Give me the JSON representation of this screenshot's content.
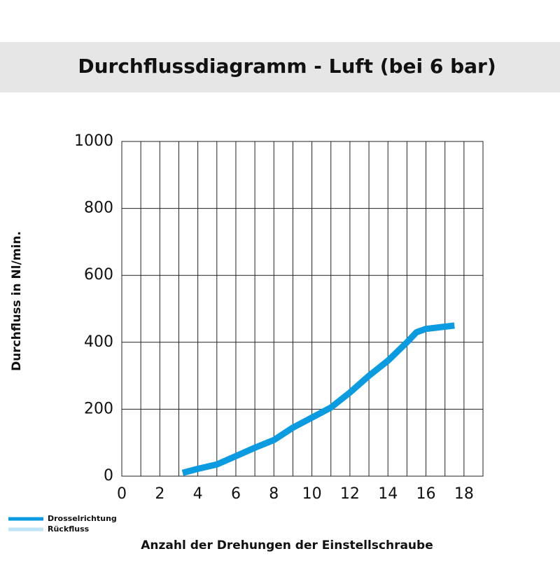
{
  "chart_data": {
    "type": "line",
    "title": "Durchflussdiagramm - Luft (bei 6 bar)",
    "y_label": "Durchfluss in Nl/min.",
    "x_label": "Anzahl der Drehungen der Einstellschraube",
    "x": [
      3.2,
      4,
      5,
      6,
      7,
      8,
      9,
      10,
      11,
      12,
      13,
      14,
      15,
      15.5,
      16,
      17.5
    ],
    "series": [
      {
        "name": "Drosselrichtung",
        "color": "#0a9be0",
        "values": [
          10,
          22,
          35,
          60,
          85,
          108,
          145,
          175,
          205,
          250,
          300,
          345,
          400,
          430,
          440,
          450
        ]
      },
      {
        "name": "Rückfluss",
        "color": "#bfe3f6",
        "values": [
          null,
          null,
          null,
          null,
          null,
          null,
          null,
          null,
          null,
          null,
          null,
          null,
          null,
          null,
          null,
          null
        ]
      }
    ],
    "xlim": [
      0,
      19
    ],
    "xticks": [
      0,
      2,
      4,
      6,
      8,
      10,
      12,
      14,
      16,
      18
    ],
    "x_minor_ticks": [
      1,
      3,
      5,
      7,
      9,
      11,
      13,
      15,
      17,
      19
    ],
    "ylim": [
      0,
      1000
    ],
    "yticks": [
      0,
      200,
      400,
      600,
      800,
      1000
    ],
    "grid": true,
    "legend": "bottom-left"
  }
}
